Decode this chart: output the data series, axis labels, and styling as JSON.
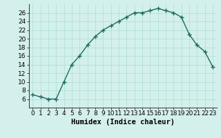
{
  "x": [
    0,
    1,
    2,
    3,
    4,
    5,
    6,
    7,
    8,
    9,
    10,
    11,
    12,
    13,
    14,
    15,
    16,
    17,
    18,
    19,
    20,
    21,
    22,
    23
  ],
  "y": [
    7,
    6.5,
    6,
    6,
    10,
    14,
    16,
    18.5,
    20.5,
    22,
    23,
    24,
    25,
    26,
    26,
    26.5,
    27,
    26.5,
    26,
    25,
    21,
    18.5,
    17,
    13.5
  ],
  "line_color": "#1a6b5a",
  "marker_color": "#1a6b5a",
  "bg_color": "#d4f0ec",
  "grid_color": "#aaddd8",
  "xlabel": "Humidex (Indice chaleur)",
  "xlim": [
    -0.5,
    23.5
  ],
  "ylim": [
    4,
    28
  ],
  "yticks": [
    6,
    8,
    10,
    12,
    14,
    16,
    18,
    20,
    22,
    24,
    26
  ],
  "xticks": [
    0,
    1,
    2,
    3,
    4,
    5,
    6,
    7,
    8,
    9,
    10,
    11,
    12,
    13,
    14,
    15,
    16,
    17,
    18,
    19,
    20,
    21,
    22,
    23
  ],
  "xlabel_fontsize": 7.5,
  "tick_fontsize": 6.5,
  "linewidth": 1.0,
  "markersize": 4
}
